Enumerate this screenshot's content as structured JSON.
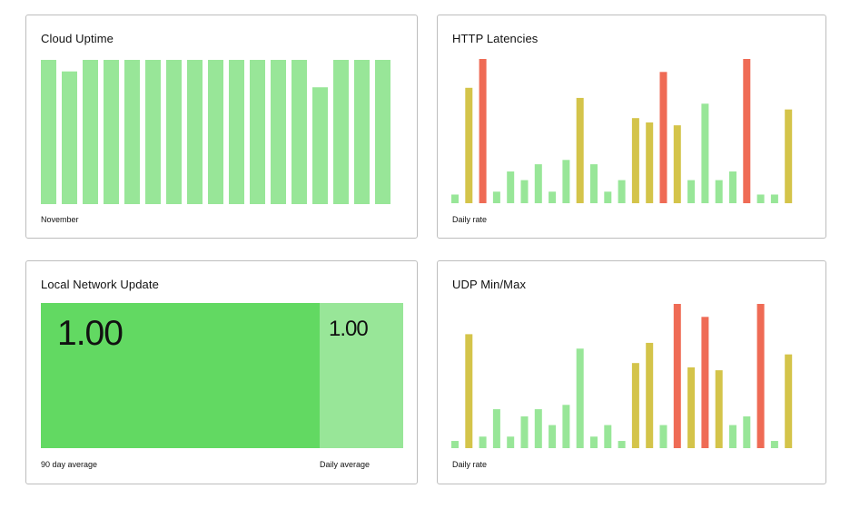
{
  "colors": {
    "green": "#98e698",
    "green_dark": "#62d962",
    "yellow": "#d4c44a",
    "red": "#ef6b55"
  },
  "cards": {
    "cloud_uptime": {
      "title": "Cloud Uptime",
      "footer": "November"
    },
    "http_latencies": {
      "title": "HTTP Latencies",
      "footer": "Daily rate"
    },
    "local_network": {
      "title": "Local Network Update",
      "main_value": "1.00",
      "side_value": "1.00",
      "main_label": "90 day average",
      "side_label": "Daily average"
    },
    "udp_minmax": {
      "title": "UDP Min/Max",
      "footer": "Daily rate"
    }
  },
  "chart_data": [
    {
      "id": "cloud_uptime",
      "type": "bar",
      "title": "Cloud Uptime",
      "xlabel": "November",
      "ylim": [
        0,
        100
      ],
      "values": [
        100,
        92,
        100,
        100,
        100,
        100,
        100,
        100,
        100,
        100,
        100,
        100,
        100,
        81,
        100,
        100,
        100
      ],
      "colors": [
        "green",
        "green",
        "green",
        "green",
        "green",
        "green",
        "green",
        "green",
        "green",
        "green",
        "green",
        "green",
        "green",
        "green",
        "green",
        "green",
        "green"
      ]
    },
    {
      "id": "http_latencies",
      "type": "bar",
      "title": "HTTP Latencies",
      "xlabel": "Daily rate",
      "ylim": [
        0,
        100
      ],
      "values": [
        6,
        80,
        100,
        8,
        22,
        16,
        27,
        8,
        30,
        73,
        27,
        8,
        16,
        59,
        56,
        91,
        54,
        16,
        69,
        16,
        22,
        100,
        6,
        6,
        65
      ],
      "colors": [
        "green",
        "yellow",
        "red",
        "green",
        "green",
        "green",
        "green",
        "green",
        "green",
        "yellow",
        "green",
        "green",
        "green",
        "yellow",
        "yellow",
        "red",
        "yellow",
        "green",
        "green",
        "green",
        "green",
        "red",
        "green",
        "green",
        "yellow"
      ]
    },
    {
      "id": "udp_minmax",
      "type": "bar",
      "title": "UDP Min/Max",
      "xlabel": "Daily rate",
      "ylim": [
        0,
        100
      ],
      "values": [
        5,
        79,
        8,
        27,
        8,
        22,
        27,
        16,
        30,
        69,
        8,
        16,
        5,
        59,
        73,
        16,
        100,
        56,
        91,
        54,
        16,
        22,
        100,
        5,
        65
      ],
      "colors": [
        "green",
        "yellow",
        "green",
        "green",
        "green",
        "green",
        "green",
        "green",
        "green",
        "green",
        "green",
        "green",
        "green",
        "yellow",
        "yellow",
        "green",
        "red",
        "yellow",
        "red",
        "yellow",
        "green",
        "green",
        "red",
        "green",
        "yellow"
      ]
    }
  ]
}
